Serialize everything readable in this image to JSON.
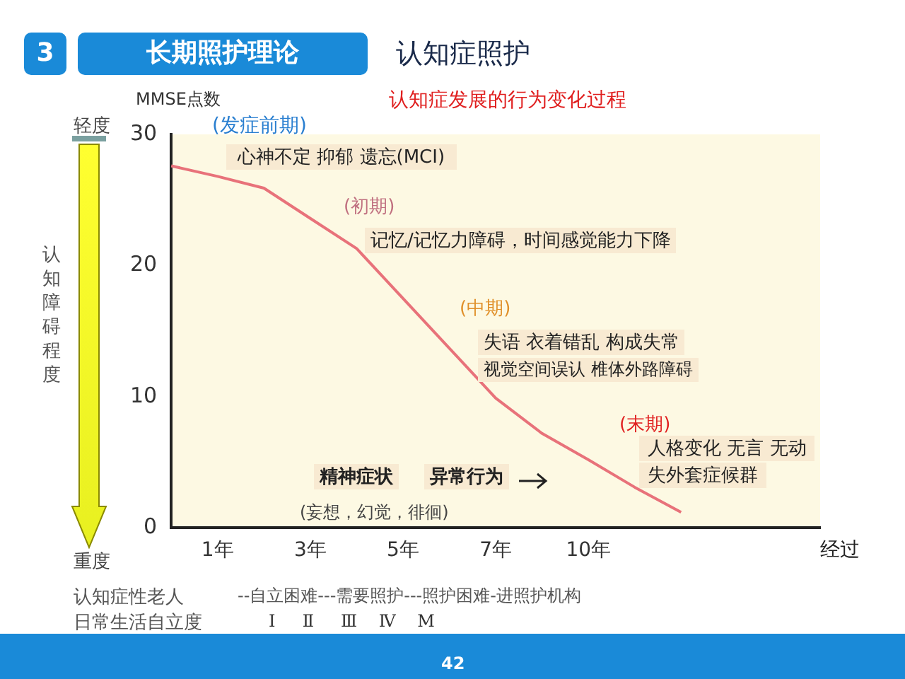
{
  "chart_data": {
    "type": "line",
    "title": "长期照护理论",
    "subtitle": "认知症照护",
    "ylabel": "MMSE点数",
    "xlabel": "经过",
    "categories": [
      null,
      "1年",
      null,
      "3年",
      null,
      "5年",
      null,
      "7年",
      null,
      "10年",
      null,
      null,
      null,
      null,
      null
    ],
    "series": [
      {
        "color": "#e8727a",
        "values": [
          27.6,
          26.8,
          25.9,
          23.6,
          21.3,
          17.5,
          13.7,
          9.9,
          7.2,
          5.2,
          3.1,
          1.2,
          null,
          null,
          null
        ]
      }
    ],
    "ylim": [
      0,
      30
    ],
    "yticks": [
      0,
      10,
      20,
      30
    ],
    "grid": false,
    "legend": false,
    "marker": "none",
    "line_style": "solid",
    "annotations": [
      "认知症发展的行为变化过程",
      "(发症前期)",
      "心神不定 抑郁 遗忘(MCI)",
      "(初期)",
      "记忆/记忆力障碍，时间感觉能力下降",
      "(中期)",
      "失语  衣着错乱  构成失常",
      "视觉空间误认  椎体外路障碍",
      "(末期)",
      "人格变化  无言  无动",
      "失外套症候群",
      "精神症状",
      "异常行为",
      "(妄想，幻觉，徘徊)",
      "认知症性老人",
      "日常生活自立度",
      "--自立困难---需要照护---照护困难-进照护机构",
      "Ⅰ     Ⅱ     Ⅲ    Ⅳ    M",
      "轻度",
      "重度",
      "认知障碍程度",
      "3",
      "42"
    ]
  }
}
